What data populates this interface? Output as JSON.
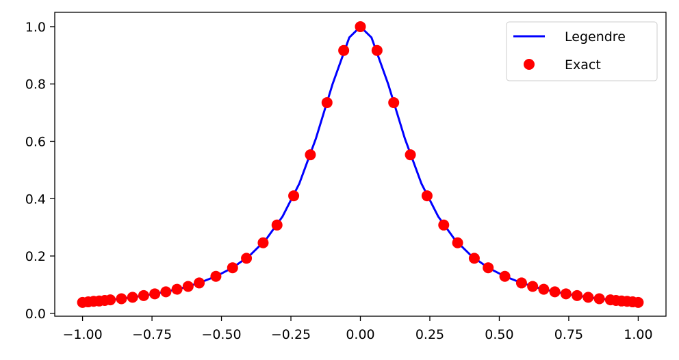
{
  "chart_data": {
    "type": "line",
    "title": "",
    "xlabel": "",
    "ylabel": "",
    "xlim": [
      -1.1,
      1.1
    ],
    "ylim": [
      -0.01,
      1.05
    ],
    "grid": false,
    "legend_position": "top-right",
    "x_ticks": [
      -1.0,
      -0.75,
      -0.5,
      -0.25,
      0.0,
      0.25,
      0.5,
      0.75,
      1.0
    ],
    "x_tick_labels": [
      "−1.00",
      "−0.75",
      "−0.50",
      "−0.25",
      "0.00",
      "0.25",
      "0.50",
      "0.75",
      "1.00"
    ],
    "y_ticks": [
      0.0,
      0.2,
      0.4,
      0.6,
      0.8,
      1.0
    ],
    "y_tick_labels": [
      "0.0",
      "0.2",
      "0.4",
      "0.6",
      "0.8",
      "1.0"
    ],
    "x": [
      -1.0,
      -0.9796,
      -0.9592,
      -0.9388,
      -0.9184,
      -0.898,
      -0.8776,
      -0.8571,
      -0.8367,
      -0.8163,
      -0.7959,
      -0.7755,
      -0.7551,
      -0.7347,
      -0.7143,
      -0.6939,
      -0.6735,
      -0.6531,
      -0.6327,
      -0.6122,
      -0.5918,
      -0.5714,
      -0.551,
      -0.5306,
      -0.5102,
      -0.4898,
      -0.4694,
      -0.449,
      -0.4286,
      -0.4082,
      -0.3878,
      -0.3673,
      -0.3469,
      -0.3265,
      -0.3061,
      -0.2857,
      -0.2653,
      -0.2449,
      -0.2245,
      -0.2041,
      -0.1837,
      -0.1633,
      -0.1429,
      -0.1224,
      -0.102,
      -0.0816,
      -0.0612,
      -0.0408,
      -0.0204,
      0.0
    ],
    "exact_x": [
      -1.0,
      -0.9898,
      -0.9595,
      -0.9096,
      -0.8413,
      -0.7557,
      -0.6549,
      -0.541,
      -0.4158,
      -0.2817,
      -0.1423,
      0.0,
      0.1423,
      0.2817,
      0.4158,
      0.541,
      0.6549,
      0.7557,
      0.8413,
      0.9096,
      0.9595,
      0.9898,
      1.0
    ],
    "series": [
      {
        "name": "Legendre",
        "style": "line",
        "color": "#0000ff",
        "x": [
          -1.0,
          -0.94,
          -0.88,
          -0.82,
          -0.76,
          -0.7,
          -0.64,
          -0.58,
          -0.52,
          -0.46,
          -0.4,
          -0.34,
          -0.28,
          -0.22,
          -0.16,
          -0.1,
          -0.04,
          0.0,
          0.04,
          0.1,
          0.16,
          0.22,
          0.28,
          0.34,
          0.4,
          0.46,
          0.52,
          0.58,
          0.64,
          0.7,
          0.76,
          0.82,
          0.88,
          0.94,
          1.0
        ],
        "values": [
          0.038,
          0.043,
          0.049,
          0.056,
          0.065,
          0.075,
          0.089,
          0.106,
          0.129,
          0.159,
          0.2,
          0.257,
          0.338,
          0.452,
          0.61,
          0.8,
          0.962,
          1.0,
          0.962,
          0.8,
          0.61,
          0.452,
          0.338,
          0.257,
          0.2,
          0.159,
          0.129,
          0.106,
          0.089,
          0.075,
          0.065,
          0.056,
          0.049,
          0.043,
          0.038
        ]
      },
      {
        "name": "Exact",
        "style": "markers",
        "color": "#ff0000",
        "x": [
          -1.0,
          -0.98,
          -0.96,
          -0.94,
          -0.92,
          -0.9,
          -0.86,
          -0.82,
          -0.78,
          -0.74,
          -0.7,
          -0.66,
          -0.62,
          -0.58,
          -0.52,
          -0.46,
          -0.41,
          -0.35,
          -0.3,
          -0.24,
          -0.18,
          -0.12,
          -0.06,
          0.0,
          0.06,
          0.12,
          0.18,
          0.24,
          0.3,
          0.35,
          0.41,
          0.46,
          0.52,
          0.58,
          0.62,
          0.66,
          0.7,
          0.74,
          0.78,
          0.82,
          0.86,
          0.9,
          0.92,
          0.94,
          0.96,
          0.98,
          1.0
        ],
        "values": [
          0.038,
          0.04,
          0.042,
          0.043,
          0.045,
          0.047,
          0.051,
          0.056,
          0.062,
          0.068,
          0.075,
          0.084,
          0.094,
          0.106,
          0.129,
          0.159,
          0.192,
          0.246,
          0.308,
          0.41,
          0.553,
          0.735,
          0.917,
          1.0,
          0.917,
          0.735,
          0.553,
          0.41,
          0.308,
          0.246,
          0.192,
          0.159,
          0.129,
          0.106,
          0.094,
          0.084,
          0.075,
          0.068,
          0.062,
          0.056,
          0.051,
          0.047,
          0.045,
          0.043,
          0.042,
          0.04,
          0.038
        ]
      }
    ]
  }
}
